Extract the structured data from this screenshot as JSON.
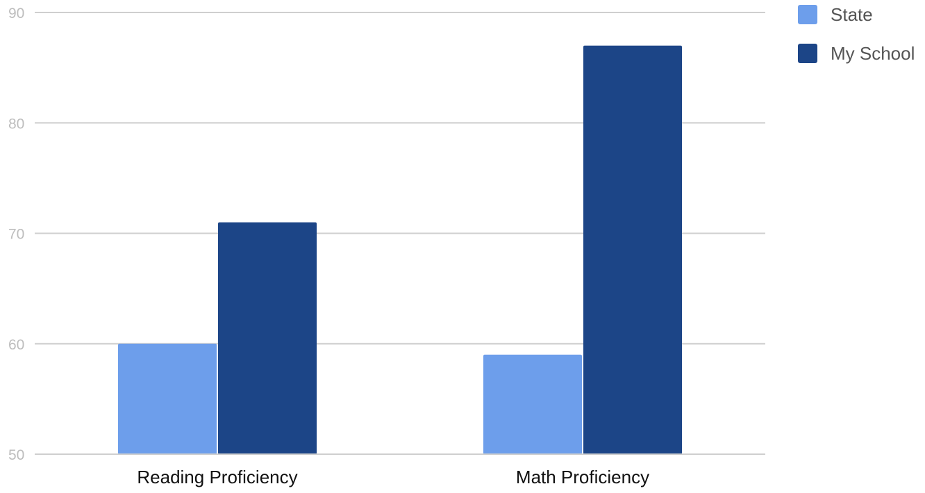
{
  "chart_data": {
    "type": "bar",
    "categories": [
      "Reading Proficiency",
      "Math Proficiency"
    ],
    "series": [
      {
        "name": "State",
        "values": [
          60,
          59
        ],
        "color": "#6d9eeb"
      },
      {
        "name": "My School",
        "values": [
          71,
          87
        ],
        "color": "#1c4587"
      }
    ],
    "ylim": [
      50,
      90
    ],
    "yticks": [
      50,
      60,
      70,
      80,
      90
    ],
    "grid": true,
    "legend_position": "top-right",
    "title": "",
    "xlabel": "",
    "ylabel": ""
  }
}
